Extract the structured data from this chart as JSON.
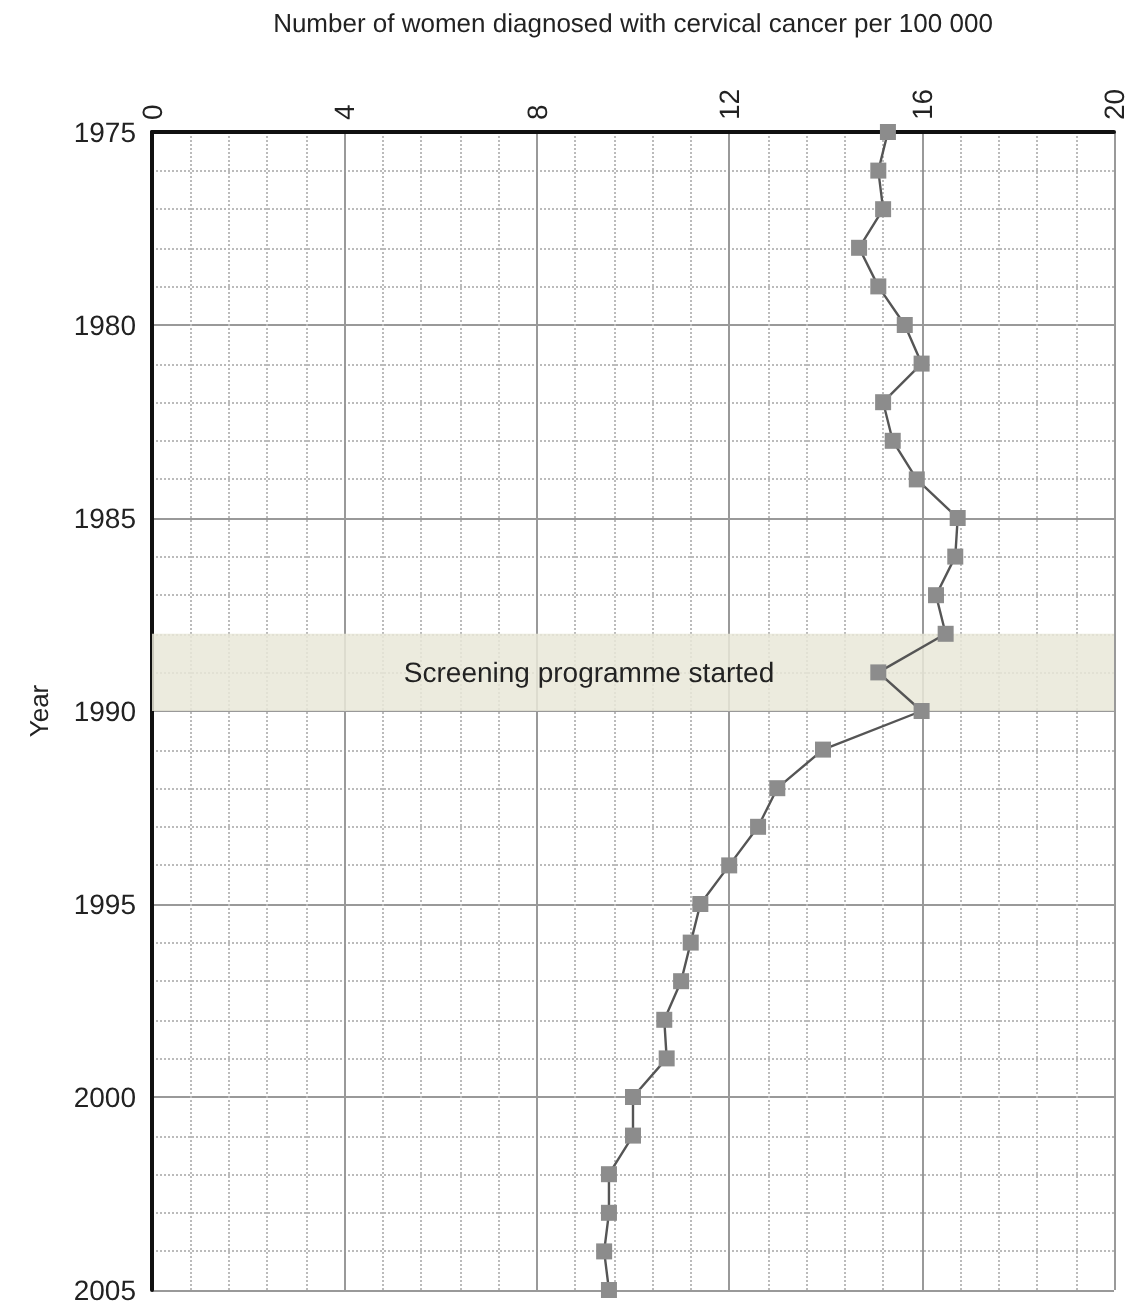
{
  "chart_data": {
    "type": "line",
    "orientation": "horizontal",
    "xlabel": "Number of women diagnosed with cervical cancer per 100 000",
    "ylabel": "Year",
    "x": [
      1975,
      1976,
      1977,
      1978,
      1979,
      1980,
      1981,
      1982,
      1983,
      1984,
      1985,
      1986,
      1987,
      1988,
      1989,
      1990,
      1991,
      1992,
      1993,
      1994,
      1995,
      1996,
      1997,
      1998,
      1999,
      2000,
      2001,
      2002,
      2003,
      2004,
      2005
    ],
    "series": [
      {
        "color": "#8c8c8c",
        "values": [
          15.3,
          15.1,
          15.2,
          14.7,
          15.1,
          15.65,
          16.0,
          15.2,
          15.4,
          15.9,
          16.75,
          16.7,
          16.3,
          16.5,
          15.1,
          16.0,
          13.95,
          13.0,
          12.6,
          12.0,
          11.4,
          11.2,
          11.0,
          10.65,
          10.7,
          10.0,
          10.0,
          9.5,
          9.5,
          9.4,
          9.5
        ]
      }
    ],
    "xlim": [
      0,
      20
    ],
    "xticks": [
      0,
      4,
      8,
      12,
      16,
      20
    ],
    "ylim": [
      2005,
      1975
    ],
    "yticks": [
      1975,
      1980,
      1985,
      1990,
      1995,
      2000,
      2005
    ],
    "bands": [
      {
        "axis": "y",
        "from": 1988,
        "to": 1990,
        "label": "Screening programme started",
        "color": "#e9e7d8"
      }
    ],
    "grid": true,
    "marker": "square",
    "line_style": "solid"
  }
}
